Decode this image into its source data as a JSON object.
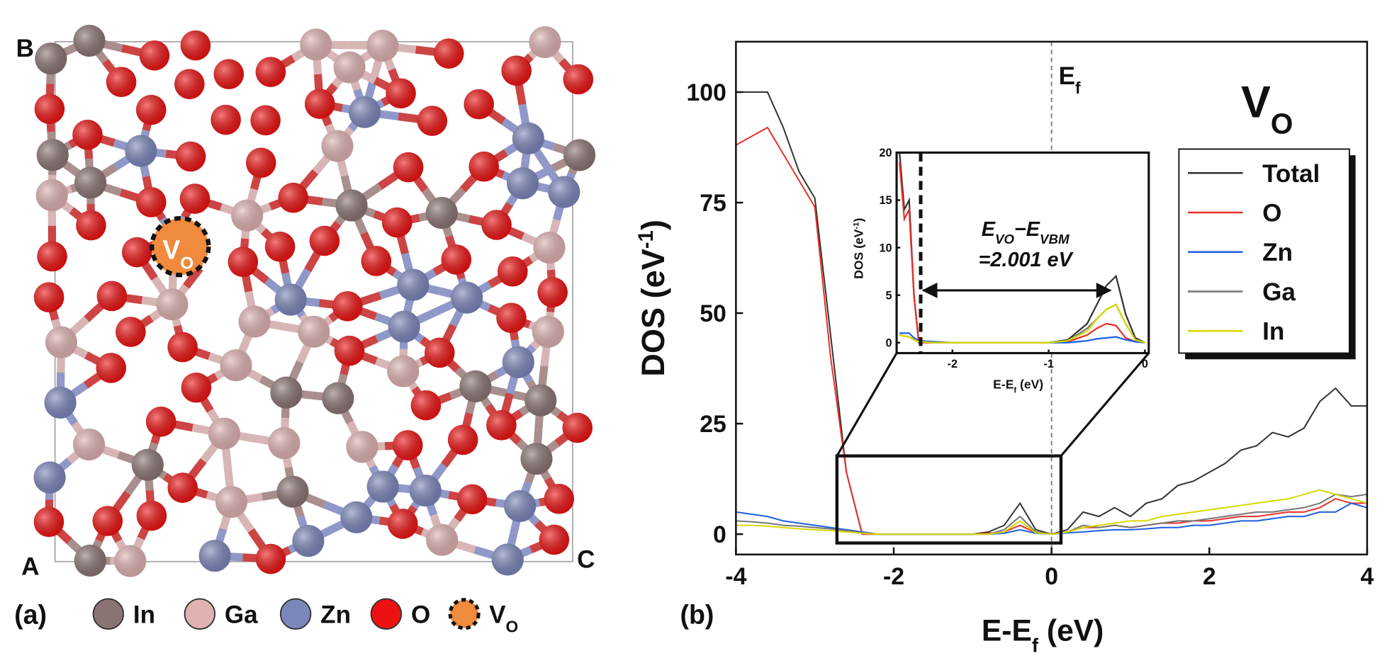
{
  "structure": {
    "corner_top_left": "B",
    "corner_bottom_left": "A",
    "corner_bottom_right": "C",
    "panel_label": "(a)",
    "vacancy_label": [
      "V",
      "O"
    ],
    "legend": [
      {
        "label": [
          "In"
        ],
        "color": "#8a7473"
      },
      {
        "label": [
          "Ga"
        ],
        "color": "#e0b2b2"
      },
      {
        "label": [
          "Zn"
        ],
        "color": "#7b86bb"
      },
      {
        "label": [
          "O"
        ],
        "color": "#ee1111"
      },
      {
        "label": [
          "V",
          "O"
        ],
        "color": "#f08a3c"
      }
    ]
  },
  "chart_data": [
    {
      "type": "line",
      "panel_label": "(b)",
      "big_label": [
        "V",
        "O"
      ],
      "x_label": [
        "E-E",
        "f",
        " (eV)"
      ],
      "y_label": [
        "DOS (eV",
        "-1",
        ")"
      ],
      "fermi_level": 0,
      "fermi_label": [
        "E",
        "f"
      ],
      "xlim": [
        -4,
        4
      ],
      "ylim": [
        -4.6,
        111.4
      ],
      "xticks": [
        -4,
        -2,
        0,
        2,
        4
      ],
      "yticks": [
        0,
        25,
        50,
        75,
        100
      ],
      "legend": "upper right",
      "zoom_box": {
        "xlim": [
          -2.72,
          0.12
        ],
        "ylim": [
          -2,
          17.7
        ]
      },
      "x": [
        -4,
        -3.8,
        -3.6,
        -3.4,
        -3.2,
        -3,
        -2.8,
        -2.6,
        -2.4,
        -2.2,
        -2,
        -1.8,
        -1.6,
        -1.4,
        -1.2,
        -1,
        -0.8,
        -0.6,
        -0.4,
        -0.2,
        0,
        0.2,
        0.4,
        0.6,
        0.8,
        1,
        1.2,
        1.4,
        1.6,
        1.8,
        2,
        2.2,
        2.4,
        2.6,
        2.8,
        3,
        3.2,
        3.4,
        3.6,
        3.8,
        4
      ],
      "series": [
        {
          "name": "Total",
          "color": "#333333",
          "values": [
            100,
            100,
            100,
            92,
            82,
            76,
            45,
            14,
            0,
            0,
            0,
            0,
            0,
            0,
            0,
            0,
            0.5,
            2,
            7,
            1,
            0,
            1,
            5,
            4,
            6,
            4,
            7,
            8,
            11,
            12,
            14,
            16,
            19,
            20,
            23,
            22,
            24,
            30,
            33,
            29,
            29
          ]
        },
        {
          "name": "O",
          "color": "#e8302a",
          "values": [
            88,
            90,
            92,
            86,
            80,
            74,
            40,
            14,
            0,
            0,
            0,
            0,
            0,
            0,
            0,
            0,
            0.2,
            0.5,
            2,
            0.3,
            0,
            0.5,
            1.5,
            1.5,
            2,
            1.5,
            2,
            2.5,
            2.5,
            3,
            3,
            3.5,
            4,
            4,
            4.5,
            5,
            5,
            6,
            8,
            7,
            7
          ]
        },
        {
          "name": "Zn",
          "color": "#1f5fe0",
          "values": [
            5,
            4.5,
            4,
            3,
            2.5,
            2,
            1.5,
            1,
            0.5,
            0,
            0,
            0,
            0,
            0,
            0,
            0,
            0,
            0.2,
            1,
            0.2,
            0,
            0.3,
            0.5,
            0.8,
            1,
            1,
            1.2,
            1.5,
            1.5,
            2,
            2,
            2.5,
            3,
            3,
            3.5,
            4,
            4,
            5,
            5,
            7,
            6
          ]
        },
        {
          "name": "Ga",
          "color": "#777777",
          "values": [
            3,
            2.8,
            2.5,
            2,
            1.8,
            1.5,
            1.2,
            0.8,
            0.3,
            0,
            0,
            0,
            0,
            0,
            0,
            0,
            0,
            1,
            4,
            0.5,
            0,
            0.5,
            2,
            1.5,
            2,
            1.5,
            2,
            2.5,
            3,
            3,
            3.5,
            4,
            4.5,
            5,
            5,
            5.5,
            6,
            7,
            9,
            8.5,
            9
          ]
        },
        {
          "name": "In",
          "color": "#d8d800",
          "values": [
            2,
            2,
            1.8,
            1.5,
            1.2,
            1,
            0.8,
            0.5,
            0.2,
            0,
            0,
            0,
            0,
            0,
            0,
            0,
            0,
            0.5,
            3,
            0.3,
            0,
            0.5,
            1.5,
            2,
            2.5,
            3,
            3,
            4,
            4.5,
            5,
            5.5,
            6,
            6.5,
            7,
            7.5,
            8,
            9,
            10,
            9,
            8,
            7
          ]
        }
      ]
    },
    {
      "type": "line",
      "x_label": [
        "E-E",
        "f",
        " (eV)"
      ],
      "y_label": [
        "DOS (eV",
        "-1",
        ")"
      ],
      "xlim": [
        -2.58,
        0.04
      ],
      "ylim": [
        -1.1,
        20
      ],
      "xticks": [
        -2,
        -1,
        0
      ],
      "yticks": [
        0,
        5,
        10,
        15,
        20
      ],
      "vbm_line": -2.33,
      "gap_arrow": {
        "x": [
          -2.33,
          -0.36
        ],
        "y": 5.5
      },
      "annotation": [
        "E",
        "VO",
        "−E",
        "VBM"
      ],
      "annotation_value": "=2.001 eV",
      "x": [
        -2.55,
        -2.5,
        -2.45,
        -2.4,
        -2.35,
        -2.2,
        -2,
        -1.5,
        -1,
        -0.8,
        -0.6,
        -0.5,
        -0.4,
        -0.3,
        -0.2,
        -0.1,
        0
      ],
      "series": [
        {
          "name": "Total",
          "color": "#333333",
          "values": [
            20,
            14,
            15,
            5,
            0,
            0,
            0,
            0,
            0,
            0.3,
            2,
            4,
            6,
            7,
            3,
            0.5,
            0
          ]
        },
        {
          "name": "O",
          "color": "#e8302a",
          "values": [
            19,
            13,
            14,
            5,
            0,
            0,
            0,
            0,
            0,
            0.1,
            0.8,
            1.5,
            2,
            1.8,
            0.5,
            0.1,
            0
          ]
        },
        {
          "name": "Zn",
          "color": "#1f5fe0",
          "values": [
            1,
            1,
            1,
            0.5,
            0.2,
            0.1,
            0,
            0,
            0,
            0,
            0.2,
            0.4,
            0.5,
            0.6,
            0.3,
            0.1,
            0
          ]
        },
        {
          "name": "Ga",
          "color": "#777777",
          "values": [
            0.8,
            0.7,
            0.6,
            0.3,
            0.1,
            0,
            0,
            0,
            0,
            0.2,
            1.5,
            2.5,
            3.5,
            4,
            2,
            0.3,
            0
          ]
        },
        {
          "name": "In",
          "color": "#d8d800",
          "values": [
            0.8,
            0.7,
            0.6,
            0.3,
            0.1,
            0,
            0,
            0,
            0,
            0.2,
            1.2,
            2.5,
            3.5,
            4,
            2,
            0.3,
            0
          ]
        }
      ]
    }
  ]
}
